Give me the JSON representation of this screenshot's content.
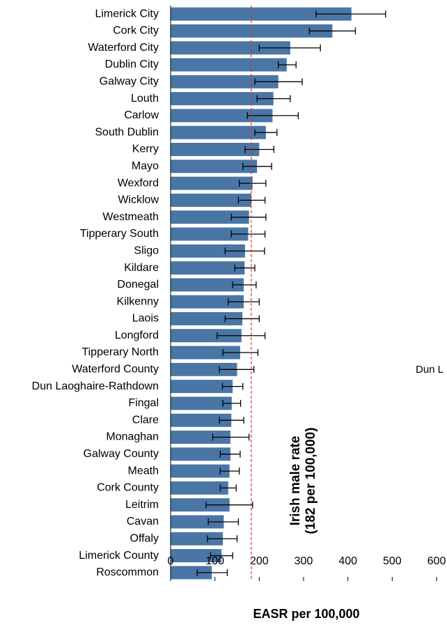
{
  "chart_data": {
    "type": "bar",
    "orientation": "horizontal",
    "categories": [
      "Limerick City",
      "Cork City",
      "Waterford City",
      "Dublin City",
      "Galway City",
      "Louth",
      "Carlow",
      "South Dublin",
      "Kerry",
      "Mayo",
      "Wexford",
      "Wicklow",
      "Westmeath",
      "Tipperary South",
      "Sligo",
      "Kildare",
      "Donegal",
      "Kilkenny",
      "Laois",
      "Longford",
      "Tipperary North",
      "Waterford County",
      "Dun Laoghaire-Rathdown",
      "Fingal",
      "Clare",
      "Monaghan",
      "Galway County",
      "Meath",
      "Cork County",
      "Leitrim",
      "Cavan",
      "Offaly",
      "Limerick County",
      "Roscommon"
    ],
    "values": [
      408,
      365,
      270,
      262,
      243,
      232,
      230,
      215,
      200,
      195,
      185,
      182,
      177,
      175,
      168,
      167,
      165,
      165,
      162,
      160,
      157,
      150,
      140,
      138,
      137,
      135,
      135,
      133,
      130,
      133,
      120,
      118,
      115,
      93
    ],
    "lower": [
      328,
      313,
      200,
      243,
      190,
      195,
      173,
      190,
      168,
      163,
      155,
      153,
      137,
      137,
      123,
      145,
      140,
      130,
      123,
      105,
      118,
      110,
      117,
      118,
      110,
      95,
      112,
      112,
      112,
      80,
      85,
      83,
      90,
      60
    ],
    "upper": [
      485,
      417,
      338,
      283,
      297,
      270,
      288,
      240,
      233,
      228,
      215,
      213,
      215,
      213,
      212,
      190,
      193,
      200,
      200,
      213,
      197,
      188,
      163,
      158,
      165,
      177,
      157,
      155,
      148,
      185,
      153,
      150,
      140,
      128
    ],
    "color": "#4a76a5",
    "xlim": [
      0,
      600
    ],
    "xticks": [
      0,
      100,
      200,
      300,
      400,
      500,
      600
    ],
    "xlabel": "EASR per 100,000",
    "reference": {
      "value": 182,
      "color": "#d9332b",
      "label_lines": [
        "Irish male rate",
        "(182 per 100,000)"
      ]
    },
    "annotations": [
      "Dun L"
    ]
  }
}
